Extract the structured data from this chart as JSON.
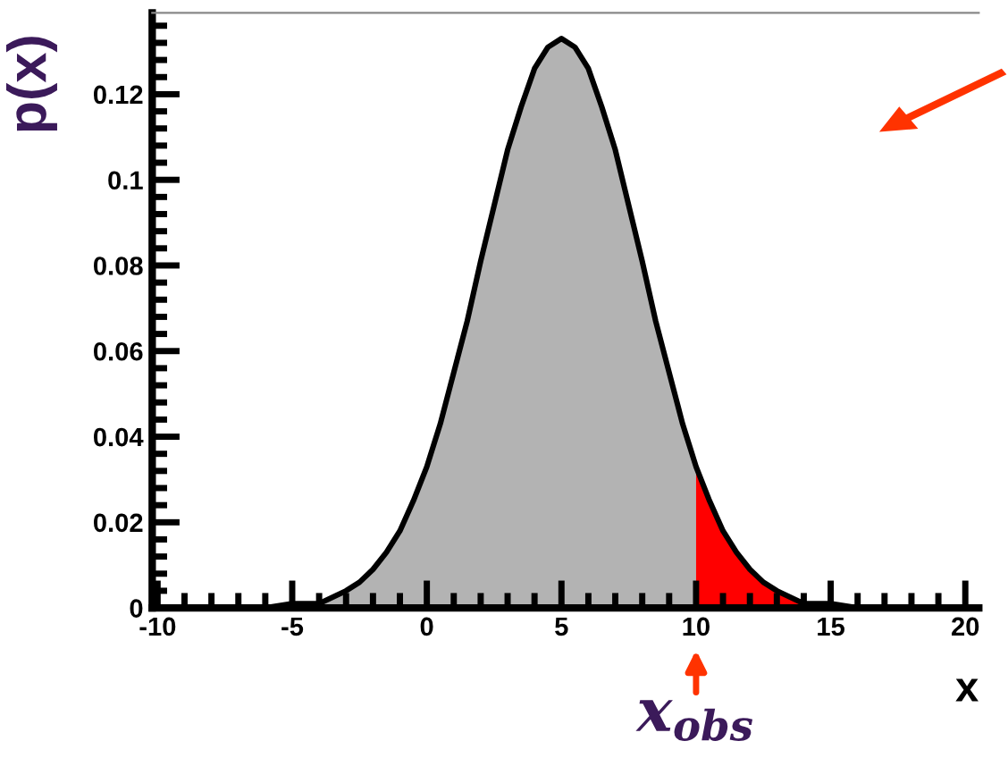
{
  "chart_data": {
    "type": "area",
    "ylabel": "p(x)",
    "xlabel": "x",
    "xlim": [
      -10.2,
      20.5
    ],
    "xticks": [
      -10,
      -5,
      0,
      5,
      10,
      15,
      20
    ],
    "ylim": [
      0,
      0.139
    ],
    "yticks": [
      0,
      0.02,
      0.04,
      0.06,
      0.08,
      0.1,
      0.12
    ],
    "grid": false,
    "series": [
      {
        "color": "#b3b3b3",
        "x": [
          -10,
          -8,
          -6,
          -5,
          -4,
          -3,
          -2.5,
          -2,
          -1.5,
          -1,
          -0.5,
          0,
          0.5,
          1,
          1.5,
          2,
          2.5,
          3,
          3.5,
          4,
          4.5,
          5,
          5.5,
          6,
          6.5,
          7,
          7.5,
          8,
          8.5,
          9,
          9.5,
          10
        ],
        "values": [
          0,
          0,
          0,
          0.001,
          0.001,
          0.004,
          0.006,
          0.009,
          0.013,
          0.018,
          0.025,
          0.033,
          0.043,
          0.055,
          0.067,
          0.081,
          0.094,
          0.107,
          0.117,
          0.126,
          0.131,
          0.133,
          0.131,
          0.126,
          0.117,
          0.107,
          0.094,
          0.081,
          0.067,
          0.055,
          0.043,
          0.033
        ]
      },
      {
        "color": "#ff0000",
        "x": [
          10,
          10.5,
          11,
          11.5,
          12,
          12.5,
          13,
          14,
          15,
          16,
          18,
          20
        ],
        "values": [
          0.033,
          0.025,
          0.018,
          0.013,
          0.009,
          0.006,
          0.004,
          0.001,
          0.001,
          0,
          0,
          0
        ]
      },
      {
        "type": "line",
        "color": "#000000",
        "x": [
          -10,
          -8,
          -6,
          -5,
          -4,
          -3,
          -2.5,
          -2,
          -1.5,
          -1,
          -0.5,
          0,
          0.5,
          1,
          1.5,
          2,
          2.5,
          3,
          3.5,
          4,
          4.5,
          5,
          5.5,
          6,
          6.5,
          7,
          7.5,
          8,
          8.5,
          9,
          9.5,
          10,
          10.5,
          11,
          11.5,
          12,
          12.5,
          13,
          14,
          15,
          16,
          18,
          20
        ],
        "values": [
          0,
          0,
          0,
          0.001,
          0.001,
          0.004,
          0.006,
          0.009,
          0.013,
          0.018,
          0.025,
          0.033,
          0.043,
          0.055,
          0.067,
          0.081,
          0.094,
          0.107,
          0.117,
          0.126,
          0.131,
          0.133,
          0.131,
          0.126,
          0.117,
          0.107,
          0.094,
          0.081,
          0.067,
          0.055,
          0.043,
          0.033,
          0.025,
          0.018,
          0.013,
          0.009,
          0.006,
          0.004,
          0.001,
          0.001,
          0,
          0,
          0
        ]
      }
    ],
    "annotations": [
      {
        "text": "x$_{obs}$",
        "x": 10,
        "y": 0
      }
    ]
  }
}
